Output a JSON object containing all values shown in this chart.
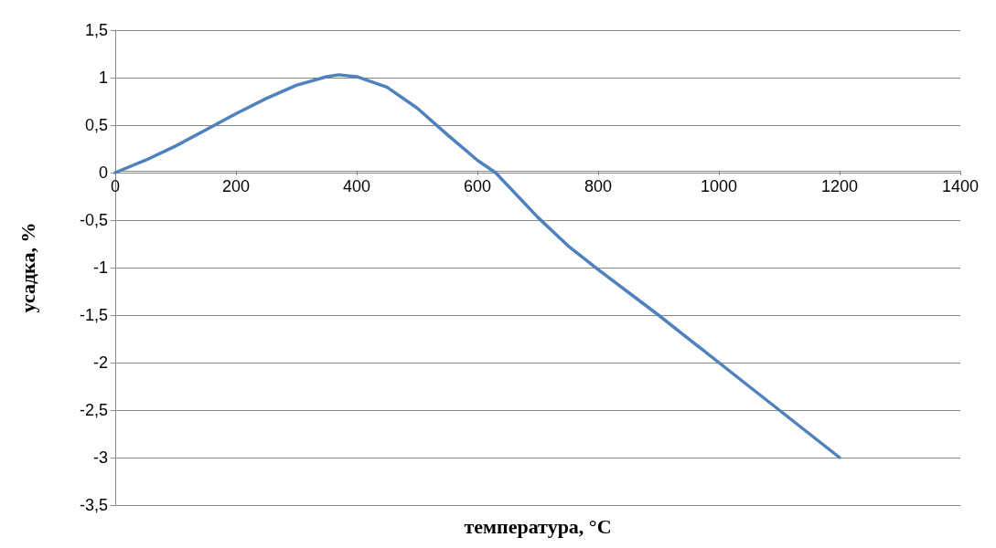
{
  "chart_data": {
    "type": "line",
    "xlabel": "температура, °С",
    "ylabel": "усадка, %",
    "x": [
      0,
      50,
      100,
      150,
      200,
      250,
      300,
      350,
      370,
      400,
      450,
      500,
      550,
      600,
      630,
      700,
      750,
      800,
      900,
      1000,
      1100,
      1200
    ],
    "series": [
      {
        "color": "#4f81bd",
        "values": [
          0,
          0.13,
          0.28,
          0.45,
          0.62,
          0.78,
          0.92,
          1.01,
          1.03,
          1.01,
          0.9,
          0.68,
          0.4,
          0.13,
          0,
          -0.47,
          -0.77,
          -1.02,
          -1.5,
          -2,
          -2.5,
          -3
        ]
      }
    ],
    "xlim": [
      0,
      1400
    ],
    "xticks": [
      0,
      200,
      400,
      600,
      800,
      1000,
      1200,
      1400
    ],
    "ylim": [
      -3.5,
      1.5
    ],
    "yticks": [
      {
        "value": -3.5,
        "label": "-3,5"
      },
      {
        "value": -3,
        "label": "-3"
      },
      {
        "value": -2.5,
        "label": "-2,5"
      },
      {
        "value": -2,
        "label": "-2"
      },
      {
        "value": -1.5,
        "label": "-1,5"
      },
      {
        "value": -1,
        "label": "-1"
      },
      {
        "value": -0.5,
        "label": "-0,5"
      },
      {
        "value": 0,
        "label": "0"
      },
      {
        "value": 0.5,
        "label": "0,5"
      },
      {
        "value": 1,
        "label": "1"
      },
      {
        "value": 1.5,
        "label": "1,5"
      }
    ],
    "grid": "y",
    "marker": "none",
    "line_style": "solid"
  }
}
